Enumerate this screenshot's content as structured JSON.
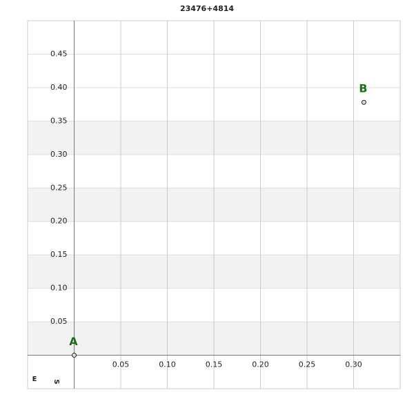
{
  "chart_data": {
    "type": "scatter",
    "title": "23476+4814",
    "x": [
      0,
      0.311
    ],
    "values": [
      0,
      0.378
    ],
    "point_labels": [
      "A",
      "B"
    ],
    "color": "#dddddd",
    "label_color": "#1a6e1a",
    "corner_labels": [
      "E",
      "S"
    ],
    "xlim": [
      -0.05,
      0.35
    ],
    "ylim": [
      -0.05,
      0.5
    ],
    "xticks": [
      0.05,
      {
        "value": 0.1,
        "label": "0.10"
      },
      0.15,
      {
        "value": 0.2,
        "label": "0.20"
      },
      0.25,
      {
        "value": 0.3,
        "label": "0.30"
      }
    ],
    "yticks": [
      0.05,
      {
        "value": 0.1,
        "label": "0.10"
      },
      0.15,
      {
        "value": 0.2,
        "label": "0.20"
      },
      0.25,
      {
        "value": 0.3,
        "label": "0.30"
      },
      0.35,
      {
        "value": 0.4,
        "label": "0.40"
      },
      0.45
    ],
    "grid": true,
    "banded": true
  }
}
